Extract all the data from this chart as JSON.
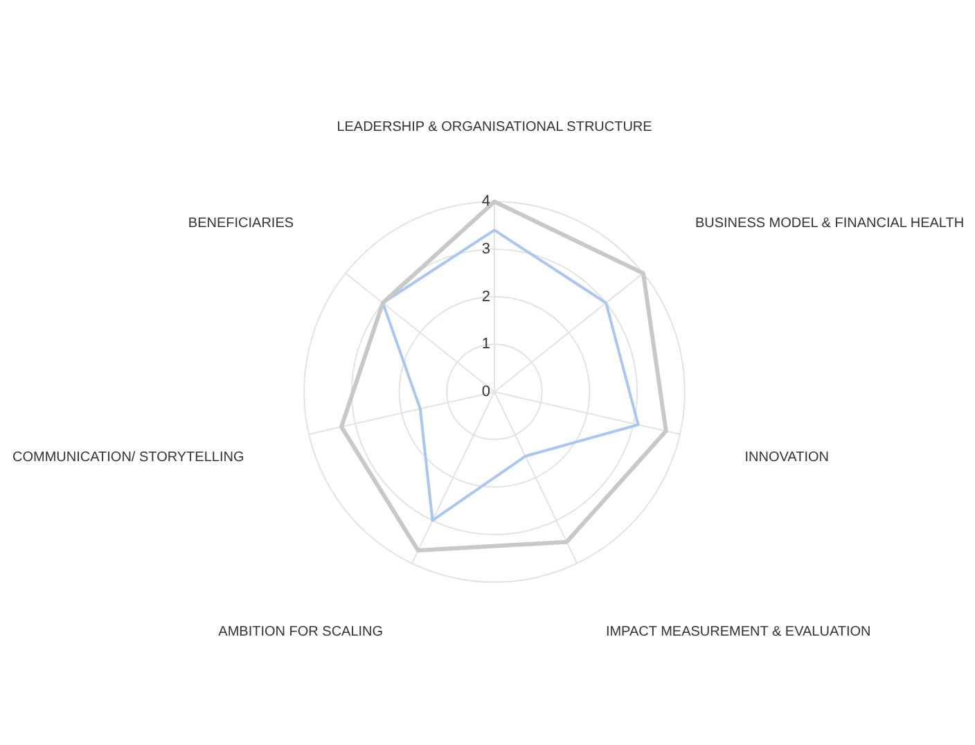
{
  "chart_data": {
    "type": "radar",
    "categories": [
      "LEADERSHIP & ORGANISATIONAL STRUCTURE",
      "BUSINESS MODEL & FINANCIAL HEALTH",
      "INNOVATION",
      "IMPACT MEASUREMENT & EVALUATION",
      "AMBITION FOR SCALING",
      "COMMUNICATION/ STORYTELLING",
      "BENEFICIARIES"
    ],
    "series": [
      {
        "color": "#c8c8c8",
        "values": [
          4,
          4,
          3.7,
          3.5,
          3.7,
          3.3,
          3
        ]
      },
      {
        "color": "#abc5f3",
        "values": [
          3.4,
          3,
          3.1,
          1.5,
          3,
          1.6,
          3
        ]
      }
    ],
    "ylim": [
      0,
      4
    ],
    "yticks": [
      0,
      1,
      2,
      3,
      4
    ],
    "grid": true,
    "legend": false,
    "marker": "none"
  }
}
